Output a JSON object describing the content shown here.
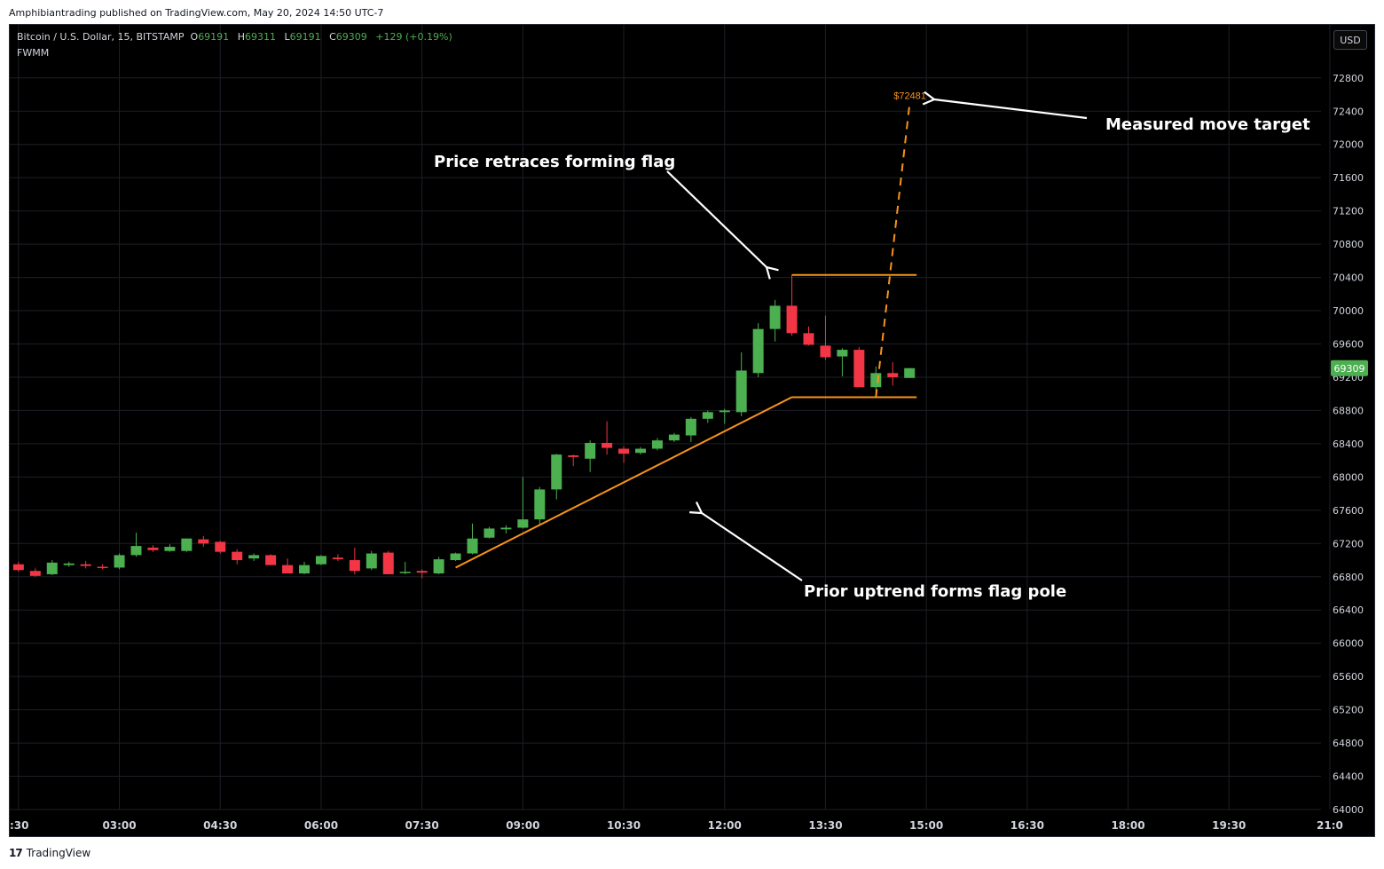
{
  "publisher_line": "Amphibiantrading published on TradingView.com, May 20, 2024 14:50 UTC-7",
  "legend": {
    "symbol": "Bitcoin / U.S. Dollar, 15, BITSTAMP",
    "o_label": "O",
    "o_value": "69191",
    "h_label": "H",
    "h_value": "69311",
    "l_label": "L",
    "l_value": "69191",
    "c_label": "C",
    "c_value": "69309",
    "change": "+129 (+0.19%)"
  },
  "indicator": "FWMM",
  "currency": "USD",
  "footer": {
    "logo_icon": "tradingview-logo-icon",
    "brand": "TradingView"
  },
  "colors": {
    "up": "#4caf50",
    "down": "#f23645",
    "pattern": "#f7931a",
    "annotation": "#ffffff",
    "grid": "#1c1f26",
    "axis_text": "#d1d4dc",
    "background": "#000000"
  },
  "chart_data": {
    "type": "candlestick",
    "title": "Bitcoin / U.S. Dollar, 15, BITSTAMP",
    "ylim": [
      64000,
      73250
    ],
    "y_ticks": [
      64000,
      64400,
      64800,
      65200,
      65600,
      66000,
      66400,
      66800,
      67200,
      67600,
      68000,
      68400,
      68800,
      69200,
      69600,
      70000,
      70400,
      70800,
      71200,
      71600,
      72000,
      72400,
      72800
    ],
    "x_tick_labels": [
      ":30",
      "03:00",
      "04:30",
      "06:00",
      "07:30",
      "09:00",
      "10:30",
      "12:00",
      "13:30",
      "15:00",
      "16:30",
      "18:00",
      "19:30",
      "21:0"
    ],
    "x_tick_hours": [
      1.5,
      3,
      4.5,
      6,
      7.5,
      9,
      10.5,
      12,
      13.5,
      15,
      16.5,
      18,
      19.5,
      21
    ],
    "xlim_hours": [
      1.37,
      21.47
    ],
    "last_price": "69309",
    "candles": [
      {
        "t": "01:30",
        "o": 66950,
        "h": 66980,
        "l": 66860,
        "c": 66880
      },
      {
        "t": "01:45",
        "o": 66870,
        "h": 66900,
        "l": 66800,
        "c": 66810
      },
      {
        "t": "02:00",
        "o": 66830,
        "h": 67000,
        "l": 66820,
        "c": 66970
      },
      {
        "t": "02:15",
        "o": 66940,
        "h": 66980,
        "l": 66920,
        "c": 66960
      },
      {
        "t": "02:30",
        "o": 66950,
        "h": 66990,
        "l": 66900,
        "c": 66930
      },
      {
        "t": "02:45",
        "o": 66920,
        "h": 66950,
        "l": 66890,
        "c": 66910
      },
      {
        "t": "03:00",
        "o": 66910,
        "h": 67080,
        "l": 66890,
        "c": 67060
      },
      {
        "t": "03:15",
        "o": 67060,
        "h": 67330,
        "l": 67040,
        "c": 67170
      },
      {
        "t": "03:30",
        "o": 67150,
        "h": 67180,
        "l": 67100,
        "c": 67120
      },
      {
        "t": "03:45",
        "o": 67110,
        "h": 67190,
        "l": 67100,
        "c": 67160
      },
      {
        "t": "04:00",
        "o": 67110,
        "h": 67260,
        "l": 67100,
        "c": 67260
      },
      {
        "t": "04:15",
        "o": 67250,
        "h": 67290,
        "l": 67160,
        "c": 67200
      },
      {
        "t": "04:30",
        "o": 67220,
        "h": 67230,
        "l": 67080,
        "c": 67100
      },
      {
        "t": "04:45",
        "o": 67100,
        "h": 67130,
        "l": 66950,
        "c": 67000
      },
      {
        "t": "05:00",
        "o": 67020,
        "h": 67080,
        "l": 66990,
        "c": 67060
      },
      {
        "t": "05:15",
        "o": 67060,
        "h": 67070,
        "l": 66940,
        "c": 66940
      },
      {
        "t": "05:30",
        "o": 66940,
        "h": 67020,
        "l": 66840,
        "c": 66840
      },
      {
        "t": "05:45",
        "o": 66840,
        "h": 66980,
        "l": 66830,
        "c": 66940
      },
      {
        "t": "06:00",
        "o": 66950,
        "h": 67060,
        "l": 66940,
        "c": 67050
      },
      {
        "t": "06:15",
        "o": 67030,
        "h": 67070,
        "l": 66990,
        "c": 67010
      },
      {
        "t": "06:30",
        "o": 67000,
        "h": 67150,
        "l": 66830,
        "c": 66870
      },
      {
        "t": "06:45",
        "o": 66900,
        "h": 67110,
        "l": 66880,
        "c": 67080
      },
      {
        "t": "07:00",
        "o": 67090,
        "h": 67110,
        "l": 66830,
        "c": 66830
      },
      {
        "t": "07:15",
        "o": 66850,
        "h": 66980,
        "l": 66830,
        "c": 66860
      },
      {
        "t": "07:30",
        "o": 66870,
        "h": 66890,
        "l": 66780,
        "c": 66850
      },
      {
        "t": "07:45",
        "o": 66840,
        "h": 67040,
        "l": 66830,
        "c": 67010
      },
      {
        "t": "08:00",
        "o": 67000,
        "h": 67090,
        "l": 66990,
        "c": 67080
      },
      {
        "t": "08:15",
        "o": 67080,
        "h": 67440,
        "l": 67070,
        "c": 67260
      },
      {
        "t": "08:30",
        "o": 67270,
        "h": 67400,
        "l": 67260,
        "c": 67380
      },
      {
        "t": "08:45",
        "o": 67370,
        "h": 67420,
        "l": 67320,
        "c": 67390
      },
      {
        "t": "09:00",
        "o": 67390,
        "h": 68000,
        "l": 67380,
        "c": 67490
      },
      {
        "t": "09:15",
        "o": 67490,
        "h": 67880,
        "l": 67420,
        "c": 67850
      },
      {
        "t": "09:30",
        "o": 67850,
        "h": 68280,
        "l": 67730,
        "c": 68270
      },
      {
        "t": "09:45",
        "o": 68260,
        "h": 68270,
        "l": 68130,
        "c": 68240
      },
      {
        "t": "10:00",
        "o": 68220,
        "h": 68440,
        "l": 68060,
        "c": 68410
      },
      {
        "t": "10:15",
        "o": 68410,
        "h": 68670,
        "l": 68270,
        "c": 68350
      },
      {
        "t": "10:30",
        "o": 68340,
        "h": 68370,
        "l": 68170,
        "c": 68280
      },
      {
        "t": "10:45",
        "o": 68290,
        "h": 68360,
        "l": 68270,
        "c": 68340
      },
      {
        "t": "11:00",
        "o": 68340,
        "h": 68470,
        "l": 68320,
        "c": 68440
      },
      {
        "t": "11:15",
        "o": 68440,
        "h": 68530,
        "l": 68420,
        "c": 68510
      },
      {
        "t": "11:30",
        "o": 68500,
        "h": 68720,
        "l": 68420,
        "c": 68700
      },
      {
        "t": "11:45",
        "o": 68700,
        "h": 68800,
        "l": 68650,
        "c": 68780
      },
      {
        "t": "12:00",
        "o": 68780,
        "h": 68820,
        "l": 68640,
        "c": 68800
      },
      {
        "t": "12:15",
        "o": 68780,
        "h": 69500,
        "l": 68730,
        "c": 69280
      },
      {
        "t": "12:30",
        "o": 69250,
        "h": 69850,
        "l": 69200,
        "c": 69780
      },
      {
        "t": "12:45",
        "o": 69780,
        "h": 70130,
        "l": 69630,
        "c": 70060
      },
      {
        "t": "13:00",
        "o": 70060,
        "h": 70430,
        "l": 69700,
        "c": 69730
      },
      {
        "t": "13:15",
        "o": 69730,
        "h": 69810,
        "l": 69580,
        "c": 69590
      },
      {
        "t": "13:30",
        "o": 69580,
        "h": 69940,
        "l": 69410,
        "c": 69440
      },
      {
        "t": "13:45",
        "o": 69450,
        "h": 69550,
        "l": 69210,
        "c": 69530
      },
      {
        "t": "14:00",
        "o": 69530,
        "h": 69560,
        "l": 69080,
        "c": 69080
      },
      {
        "t": "14:15",
        "o": 69080,
        "h": 69330,
        "l": 69000,
        "c": 69250
      },
      {
        "t": "14:30",
        "o": 69250,
        "h": 69380,
        "l": 69100,
        "c": 69200
      },
      {
        "t": "14:45",
        "o": 69191,
        "h": 69311,
        "l": 69191,
        "c": 69309
      }
    ],
    "flag_pattern": {
      "pole": {
        "from": {
          "t": "08:00",
          "price": 66910
        },
        "to": {
          "t": "13:00",
          "price": 68960
        }
      },
      "flag_top": {
        "from": {
          "t": "13:00",
          "price": 70430
        },
        "to": {
          "t": "14:45",
          "price": 70430
        }
      },
      "flag_bottom": {
        "from": {
          "t": "13:00",
          "price": 68960
        },
        "to": {
          "t": "14:45",
          "price": 68960
        }
      },
      "measured_move": {
        "from": {
          "t": "14:15",
          "price": 68960
        },
        "to": {
          "t": "14:45",
          "price": 72481
        }
      },
      "target_label": "$72481"
    },
    "annotations": [
      {
        "text": "Measured move target"
      },
      {
        "text": "Price retraces forming flag"
      },
      {
        "text": "Prior uptrend forms flag pole"
      }
    ]
  }
}
